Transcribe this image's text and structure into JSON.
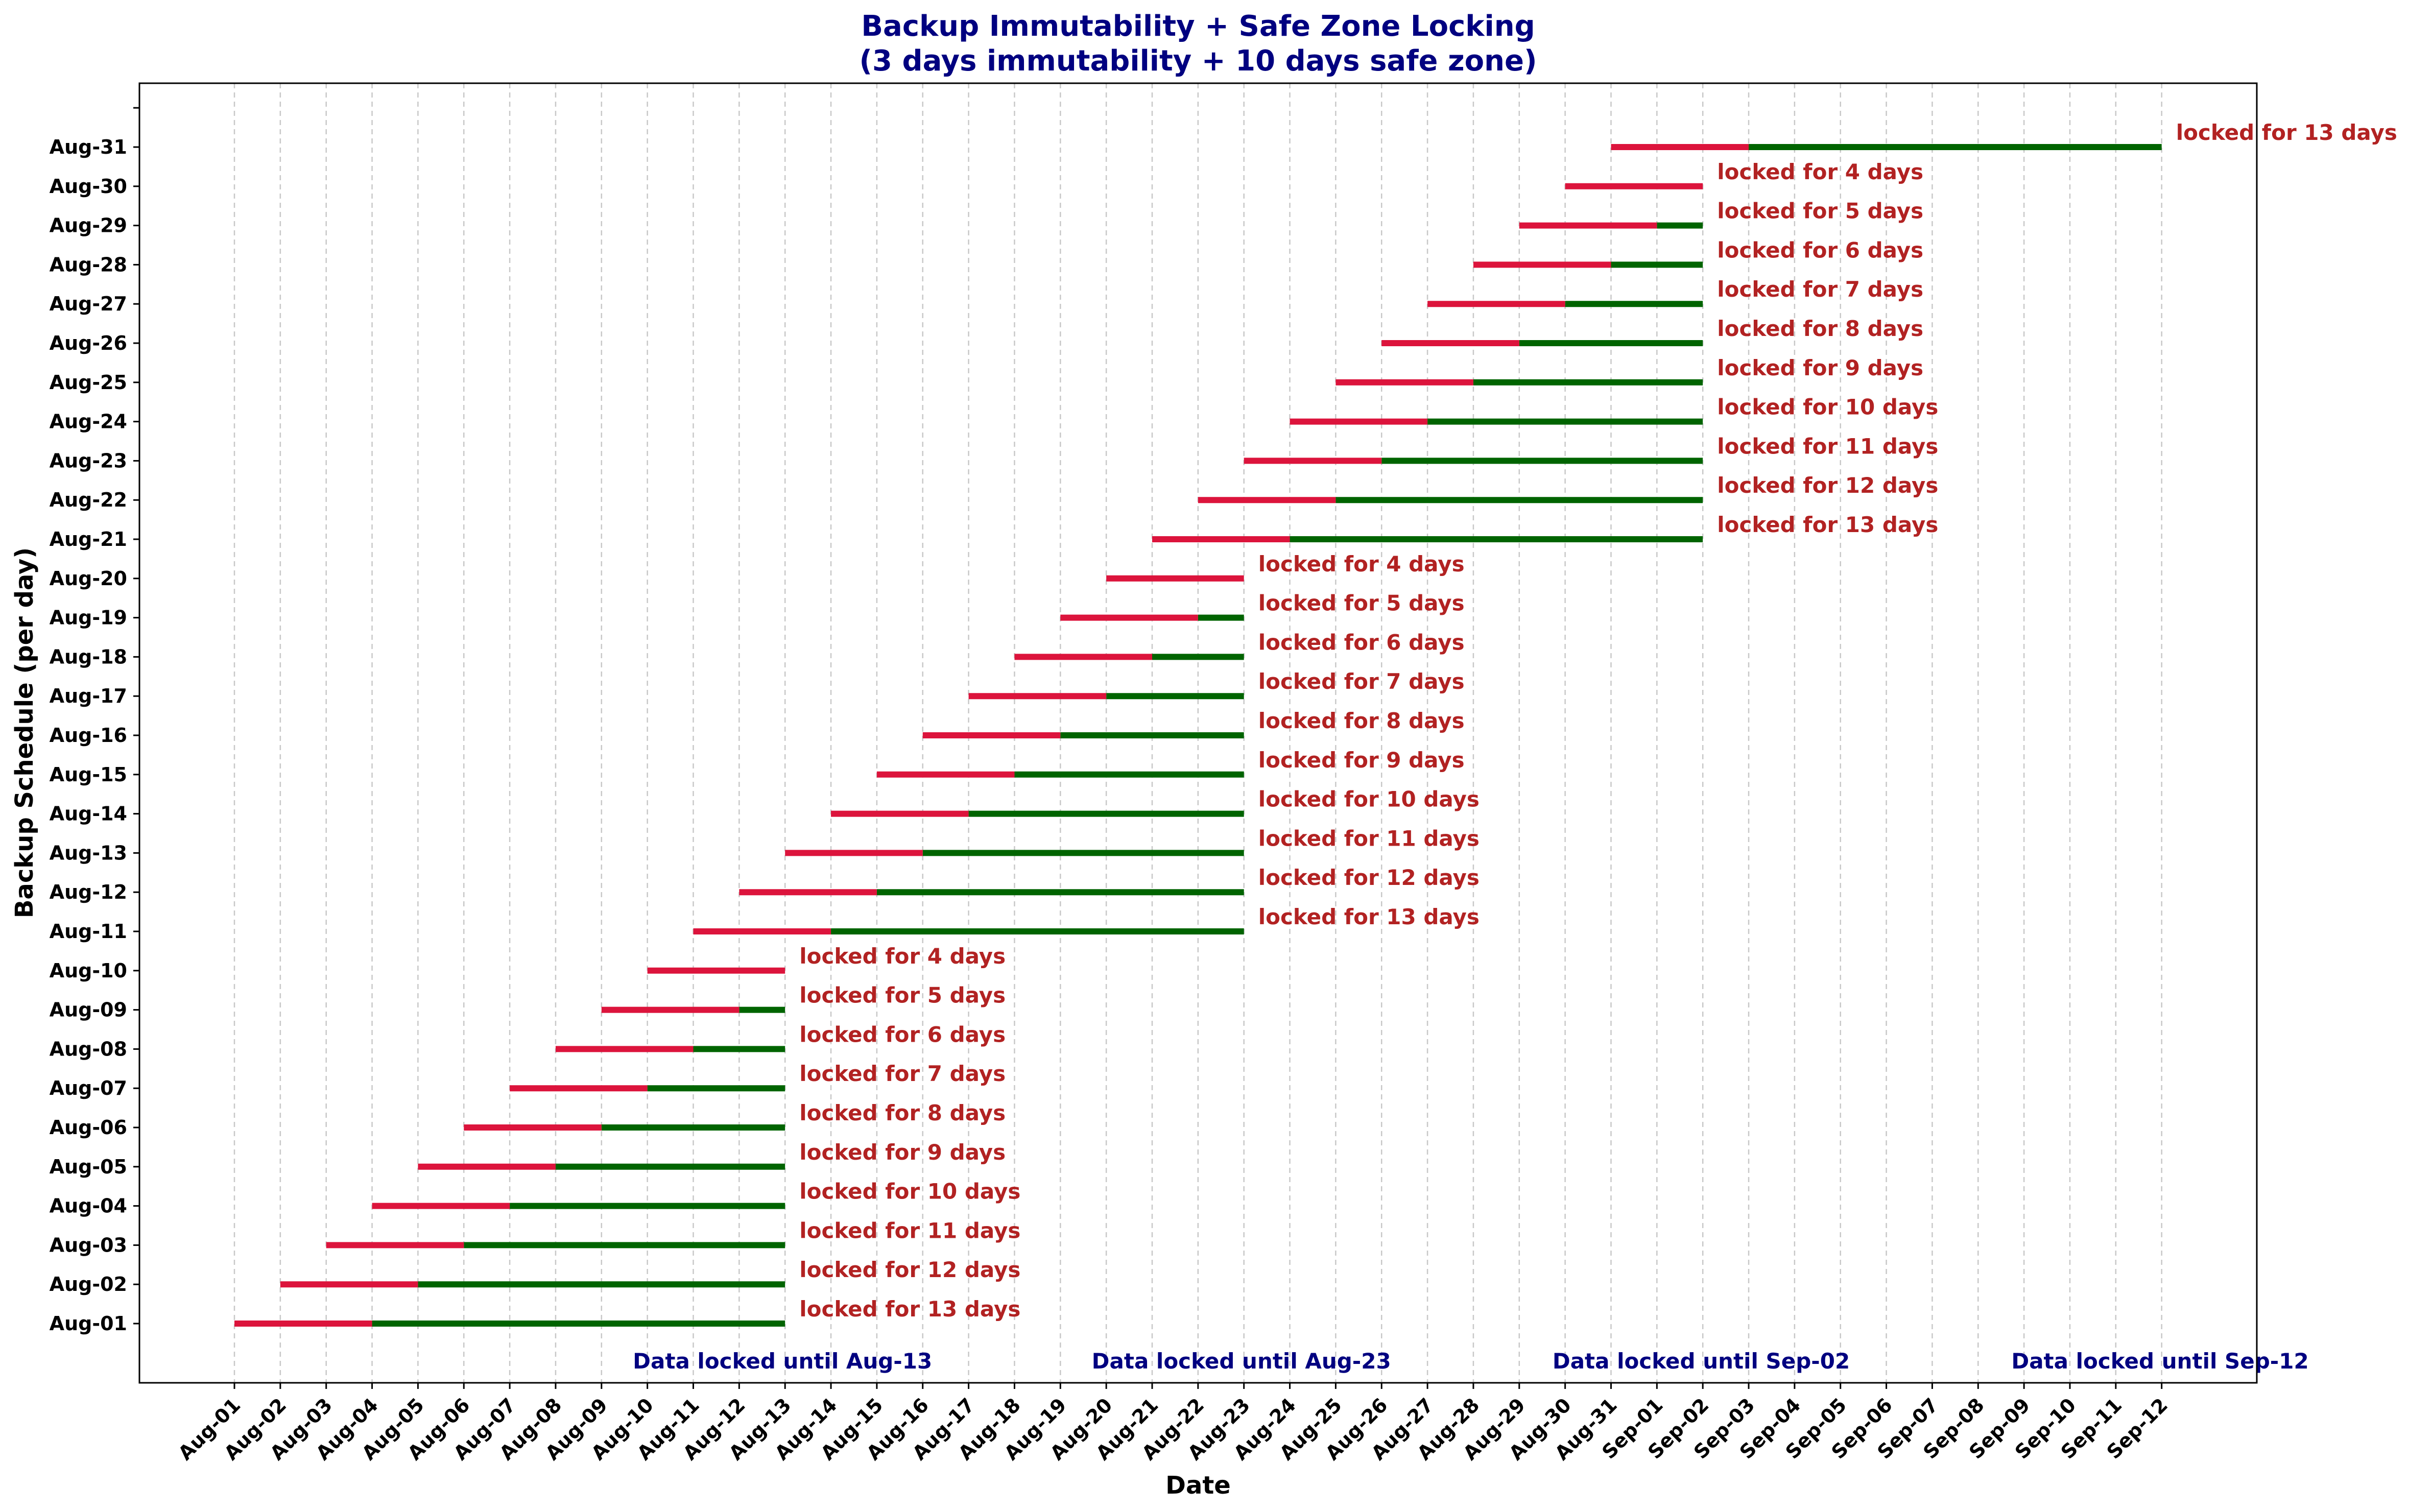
{
  "chart_data": {
    "type": "gantt",
    "title": "Backup Immutability + Safe Zone Locking",
    "subtitle": "(3 days immutability + 10 days safe zone)",
    "xlabel": "Date",
    "ylabel": "Backup Schedule (per day)",
    "x_ticks": [
      "Aug-01",
      "Aug-02",
      "Aug-03",
      "Aug-04",
      "Aug-05",
      "Aug-06",
      "Aug-07",
      "Aug-08",
      "Aug-09",
      "Aug-10",
      "Aug-11",
      "Aug-12",
      "Aug-13",
      "Aug-14",
      "Aug-15",
      "Aug-16",
      "Aug-17",
      "Aug-18",
      "Aug-19",
      "Aug-20",
      "Aug-21",
      "Aug-22",
      "Aug-23",
      "Aug-24",
      "Aug-25",
      "Aug-26",
      "Aug-27",
      "Aug-28",
      "Aug-29",
      "Aug-30",
      "Aug-31",
      "Sep-01",
      "Sep-02",
      "Sep-03",
      "Sep-04",
      "Sep-05",
      "Sep-06",
      "Sep-07",
      "Sep-08",
      "Sep-09",
      "Sep-10",
      "Sep-11",
      "Sep-12"
    ],
    "y_ticks": [
      "Aug-01",
      "Aug-02",
      "Aug-03",
      "Aug-04",
      "Aug-05",
      "Aug-06",
      "Aug-07",
      "Aug-08",
      "Aug-09",
      "Aug-10",
      "Aug-11",
      "Aug-12",
      "Aug-13",
      "Aug-14",
      "Aug-15",
      "Aug-16",
      "Aug-17",
      "Aug-18",
      "Aug-19",
      "Aug-20",
      "Aug-21",
      "Aug-22",
      "Aug-23",
      "Aug-24",
      "Aug-25",
      "Aug-26",
      "Aug-27",
      "Aug-28",
      "Aug-29",
      "Aug-30",
      "Aug-31"
    ],
    "grid": "x-dashed",
    "colors": {
      "immutability": "#dc143c",
      "safe_zone": "#006400",
      "lock_label": "#b22222",
      "group_label": "#000080",
      "title": "#000080"
    },
    "backups": [
      {
        "date": "Aug-01",
        "immutable_start": "Aug-01",
        "immutable_end": "Aug-04",
        "locked_until": "Aug-13",
        "label": "locked for 13 days"
      },
      {
        "date": "Aug-02",
        "immutable_start": "Aug-02",
        "immutable_end": "Aug-05",
        "locked_until": "Aug-13",
        "label": "locked for 12 days"
      },
      {
        "date": "Aug-03",
        "immutable_start": "Aug-03",
        "immutable_end": "Aug-06",
        "locked_until": "Aug-13",
        "label": "locked for 11 days"
      },
      {
        "date": "Aug-04",
        "immutable_start": "Aug-04",
        "immutable_end": "Aug-07",
        "locked_until": "Aug-13",
        "label": "locked for 10 days"
      },
      {
        "date": "Aug-05",
        "immutable_start": "Aug-05",
        "immutable_end": "Aug-08",
        "locked_until": "Aug-13",
        "label": "locked for 9 days"
      },
      {
        "date": "Aug-06",
        "immutable_start": "Aug-06",
        "immutable_end": "Aug-09",
        "locked_until": "Aug-13",
        "label": "locked for 8 days"
      },
      {
        "date": "Aug-07",
        "immutable_start": "Aug-07",
        "immutable_end": "Aug-10",
        "locked_until": "Aug-13",
        "label": "locked for 7 days"
      },
      {
        "date": "Aug-08",
        "immutable_start": "Aug-08",
        "immutable_end": "Aug-11",
        "locked_until": "Aug-13",
        "label": "locked for 6 days"
      },
      {
        "date": "Aug-09",
        "immutable_start": "Aug-09",
        "immutable_end": "Aug-12",
        "locked_until": "Aug-13",
        "label": "locked for 5 days"
      },
      {
        "date": "Aug-10",
        "immutable_start": "Aug-10",
        "immutable_end": "Aug-13",
        "locked_until": "Aug-13",
        "label": "locked for 4 days"
      },
      {
        "date": "Aug-11",
        "immutable_start": "Aug-11",
        "immutable_end": "Aug-14",
        "locked_until": "Aug-23",
        "label": "locked for 13 days"
      },
      {
        "date": "Aug-12",
        "immutable_start": "Aug-12",
        "immutable_end": "Aug-15",
        "locked_until": "Aug-23",
        "label": "locked for 12 days"
      },
      {
        "date": "Aug-13",
        "immutable_start": "Aug-13",
        "immutable_end": "Aug-16",
        "locked_until": "Aug-23",
        "label": "locked for 11 days"
      },
      {
        "date": "Aug-14",
        "immutable_start": "Aug-14",
        "immutable_end": "Aug-17",
        "locked_until": "Aug-23",
        "label": "locked for 10 days"
      },
      {
        "date": "Aug-15",
        "immutable_start": "Aug-15",
        "immutable_end": "Aug-18",
        "locked_until": "Aug-23",
        "label": "locked for 9 days"
      },
      {
        "date": "Aug-16",
        "immutable_start": "Aug-16",
        "immutable_end": "Aug-19",
        "locked_until": "Aug-23",
        "label": "locked for 8 days"
      },
      {
        "date": "Aug-17",
        "immutable_start": "Aug-17",
        "immutable_end": "Aug-20",
        "locked_until": "Aug-23",
        "label": "locked for 7 days"
      },
      {
        "date": "Aug-18",
        "immutable_start": "Aug-18",
        "immutable_end": "Aug-21",
        "locked_until": "Aug-23",
        "label": "locked for 6 days"
      },
      {
        "date": "Aug-19",
        "immutable_start": "Aug-19",
        "immutable_end": "Aug-22",
        "locked_until": "Aug-23",
        "label": "locked for 5 days"
      },
      {
        "date": "Aug-20",
        "immutable_start": "Aug-20",
        "immutable_end": "Aug-23",
        "locked_until": "Aug-23",
        "label": "locked for 4 days"
      },
      {
        "date": "Aug-21",
        "immutable_start": "Aug-21",
        "immutable_end": "Aug-24",
        "locked_until": "Sep-02",
        "label": "locked for 13 days"
      },
      {
        "date": "Aug-22",
        "immutable_start": "Aug-22",
        "immutable_end": "Aug-25",
        "locked_until": "Sep-02",
        "label": "locked for 12 days"
      },
      {
        "date": "Aug-23",
        "immutable_start": "Aug-23",
        "immutable_end": "Aug-26",
        "locked_until": "Sep-02",
        "label": "locked for 11 days"
      },
      {
        "date": "Aug-24",
        "immutable_start": "Aug-24",
        "immutable_end": "Aug-27",
        "locked_until": "Sep-02",
        "label": "locked for 10 days"
      },
      {
        "date": "Aug-25",
        "immutable_start": "Aug-25",
        "immutable_end": "Aug-28",
        "locked_until": "Sep-02",
        "label": "locked for 9 days"
      },
      {
        "date": "Aug-26",
        "immutable_start": "Aug-26",
        "immutable_end": "Aug-29",
        "locked_until": "Sep-02",
        "label": "locked for 8 days"
      },
      {
        "date": "Aug-27",
        "immutable_start": "Aug-27",
        "immutable_end": "Aug-30",
        "locked_until": "Sep-02",
        "label": "locked for 7 days"
      },
      {
        "date": "Aug-28",
        "immutable_start": "Aug-28",
        "immutable_end": "Aug-31",
        "locked_until": "Sep-02",
        "label": "locked for 6 days"
      },
      {
        "date": "Aug-29",
        "immutable_start": "Aug-29",
        "immutable_end": "Sep-01",
        "locked_until": "Sep-02",
        "label": "locked for 5 days"
      },
      {
        "date": "Aug-30",
        "immutable_start": "Aug-30",
        "immutable_end": "Sep-02",
        "locked_until": "Sep-02",
        "label": "locked for 4 days"
      },
      {
        "date": "Aug-31",
        "immutable_start": "Aug-31",
        "immutable_end": "Sep-03",
        "locked_until": "Sep-12",
        "label": "locked for 13 days"
      }
    ],
    "group_annotations": [
      {
        "x": "Aug-13",
        "label": "Data locked until Aug-13"
      },
      {
        "x": "Aug-23",
        "label": "Data locked until Aug-23"
      },
      {
        "x": "Sep-02",
        "label": "Data locked until Sep-02"
      },
      {
        "x": "Sep-12",
        "label": "Data locked until Sep-12"
      }
    ]
  }
}
